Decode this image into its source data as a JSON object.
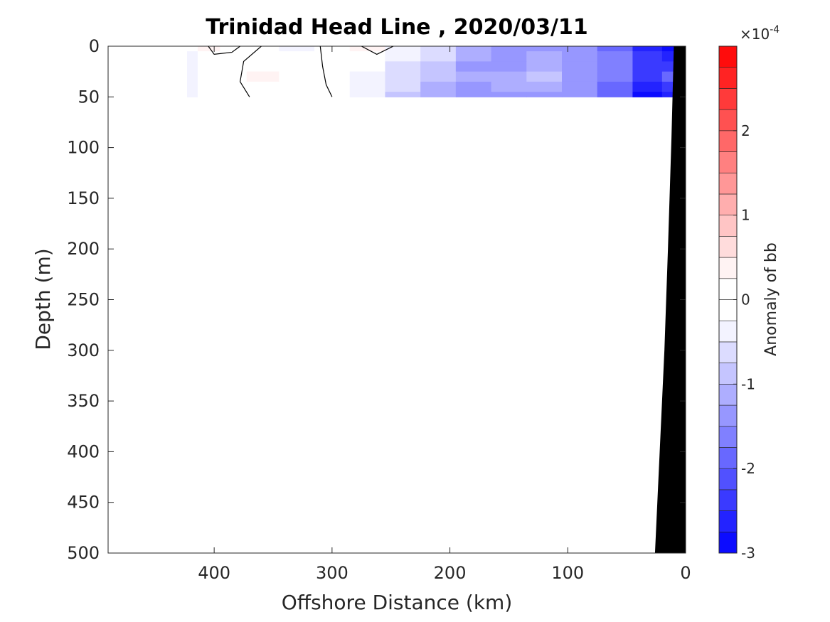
{
  "chart_data": {
    "type": "contour",
    "title": "Trinidad Head Line , 2020/03/11",
    "xlabel": "Offshore Distance (km)",
    "ylabel": "Depth (m)",
    "xlim": [
      490,
      0
    ],
    "ylim": [
      500,
      0
    ],
    "x_reversed": true,
    "y_reversed": true,
    "x_ticks": [
      400,
      300,
      200,
      100,
      0
    ],
    "x_tick_labels": [
      "400",
      "300",
      "200",
      "100",
      "0"
    ],
    "y_ticks": [
      0,
      50,
      100,
      150,
      200,
      250,
      300,
      350,
      400,
      450,
      500
    ],
    "y_tick_labels": [
      "0",
      "50",
      "100",
      "150",
      "200",
      "250",
      "300",
      "350",
      "400",
      "450",
      "500"
    ],
    "data_extent": {
      "x": [
        423,
        10
      ],
      "depth": [
        0,
        50
      ]
    },
    "profile_x": [
      423,
      405,
      385,
      360,
      330,
      300,
      270,
      240,
      210,
      180,
      150,
      120,
      90,
      60,
      30,
      10
    ],
    "profile_depth": [
      0,
      10,
      20,
      30,
      40,
      50
    ],
    "anomaly_grid_1e-4": [
      [
        -0.2,
        0.35,
        0.1,
        -0.2,
        -0.3,
        -0.2,
        0.3,
        -0.3,
        -0.6,
        -1.1,
        -1.4,
        -1.3,
        -1.5,
        -1.8,
        -2.7,
        -2.9
      ],
      [
        -0.3,
        -0.1,
        0.0,
        -0.2,
        -0.2,
        -0.1,
        0.0,
        -0.4,
        -0.7,
        -1.2,
        -1.5,
        -1.2,
        -1.4,
        -1.7,
        -2.5,
        -2.7
      ],
      [
        -0.3,
        -0.1,
        0.05,
        0.2,
        0.1,
        0.0,
        -0.2,
        -0.6,
        -0.9,
        -1.3,
        -1.3,
        -1.1,
        -1.3,
        -1.6,
        -2.3,
        -2.3
      ],
      [
        -0.3,
        -0.1,
        0.05,
        0.25,
        0.2,
        0.0,
        -0.3,
        -0.7,
        -1.0,
        -1.2,
        -1.1,
        -1.0,
        -1.3,
        -1.7,
        -2.4,
        -2.0
      ],
      [
        -0.4,
        -0.2,
        0.0,
        0.2,
        0.1,
        -0.1,
        -0.3,
        -0.7,
        -1.1,
        -1.3,
        -1.2,
        -1.2,
        -1.4,
        -1.8,
        -2.6,
        -2.4
      ],
      [
        -0.4,
        -0.2,
        0.0,
        0.1,
        0.0,
        -0.2,
        -0.4,
        -0.8,
        -1.2,
        -1.4,
        -1.3,
        -1.3,
        -1.5,
        -2.0,
        -2.8,
        -2.6
      ]
    ],
    "zero_contour_lines": [
      [
        [
          405,
          0
        ],
        [
          400,
          8
        ],
        [
          385,
          6
        ],
        [
          378,
          0
        ]
      ],
      [
        [
          360,
          0
        ],
        [
          375,
          15
        ],
        [
          378,
          35
        ],
        [
          370,
          50
        ]
      ],
      [
        [
          310,
          0
        ],
        [
          308,
          20
        ],
        [
          305,
          38
        ],
        [
          300,
          50
        ]
      ],
      [
        [
          275,
          0
        ],
        [
          262,
          8
        ],
        [
          248,
          0
        ]
      ]
    ],
    "bathymetry": {
      "x": [
        0,
        10,
        12,
        15,
        18,
        22,
        26
      ],
      "depth": [
        0,
        0,
        90,
        200,
        300,
        400,
        500
      ]
    },
    "colorbar": {
      "label": "Anomaly of bb",
      "exponent_label": "×10",
      "exponent": "-4",
      "range": [
        -3,
        3
      ],
      "ticks": [
        2,
        1,
        0,
        -1,
        -2,
        -3
      ],
      "tick_labels": [
        "2",
        "1",
        "0",
        "-1",
        "-2",
        "-3"
      ],
      "levels": 24,
      "neg_color": "#0000ff",
      "pos_color": "#ff0000",
      "zero_color": "#ffffff"
    },
    "land_color": "#000000"
  }
}
